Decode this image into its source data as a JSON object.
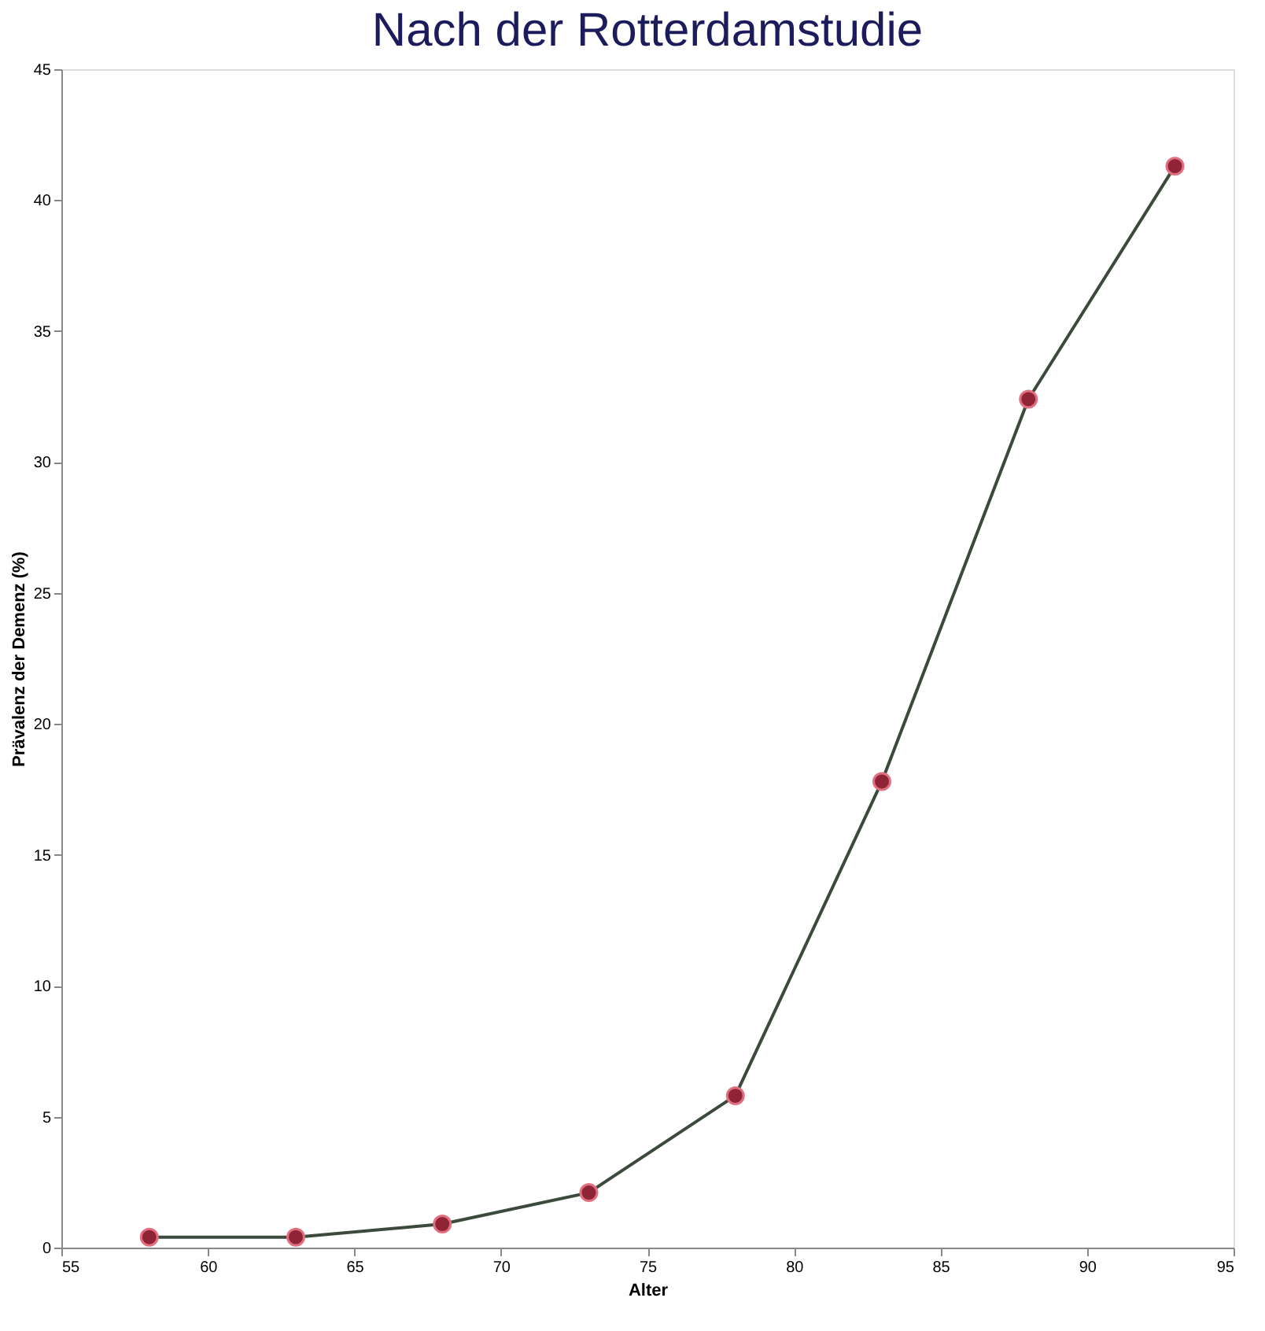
{
  "chart_data": {
    "type": "line",
    "title": "Nach der Rotterdamstudie",
    "xlabel": "Alter",
    "ylabel": "Prävalenz der Demenz (%)",
    "x": [
      58,
      63,
      68,
      73,
      78,
      83,
      88,
      93
    ],
    "series": [
      {
        "color": "#8e2435",
        "values": [
          0.4,
          0.4,
          0.9,
          2.1,
          5.8,
          17.8,
          32.4,
          41.3
        ]
      }
    ],
    "xlim": [
      55,
      95
    ],
    "xticks": [
      55,
      60,
      65,
      70,
      75,
      80,
      85,
      90,
      95
    ],
    "ylim": [
      0,
      45
    ],
    "yticks": [
      0,
      5,
      10,
      15,
      20,
      25,
      30,
      35,
      40,
      45
    ],
    "grid": false,
    "marker": "circle",
    "line_style": "solid"
  }
}
